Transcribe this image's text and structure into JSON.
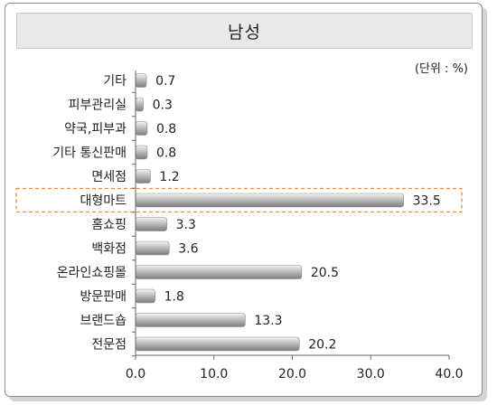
{
  "header": {
    "title": "남성"
  },
  "chart_data": {
    "type": "bar",
    "orientation": "horizontal",
    "unit_label": "(단위 : %)",
    "categories": [
      "기타",
      "피부관리실",
      "약국,피부과",
      "기타 통신판매",
      "면세점",
      "대형마트",
      "홈쇼핑",
      "백화점",
      "온라인쇼핑몰",
      "방문판매",
      "브랜드숍",
      "전문점"
    ],
    "values": [
      0.7,
      0.3,
      0.8,
      0.8,
      1.2,
      33.5,
      3.3,
      3.6,
      20.5,
      1.8,
      13.3,
      20.2
    ],
    "value_labels": [
      "0.7",
      "0.3",
      "0.8",
      "0.8",
      "1.2",
      "33.5",
      "3.3",
      "3.6",
      "20.5",
      "1.8",
      "13.3",
      "20.2"
    ],
    "xlim": [
      0,
      40
    ],
    "x_ticks": [
      "0.0",
      "10.0",
      "20.0",
      "30.0",
      "40.0"
    ],
    "x_tick_values": [
      0,
      10,
      20,
      30,
      40
    ],
    "highlight_category": "대형마트",
    "grid": false,
    "colors": {
      "bar_dark": "#7d7d7d",
      "bar_light": "#f4f4f4",
      "highlight_border": "#e9893a",
      "axis": "#666666"
    }
  }
}
